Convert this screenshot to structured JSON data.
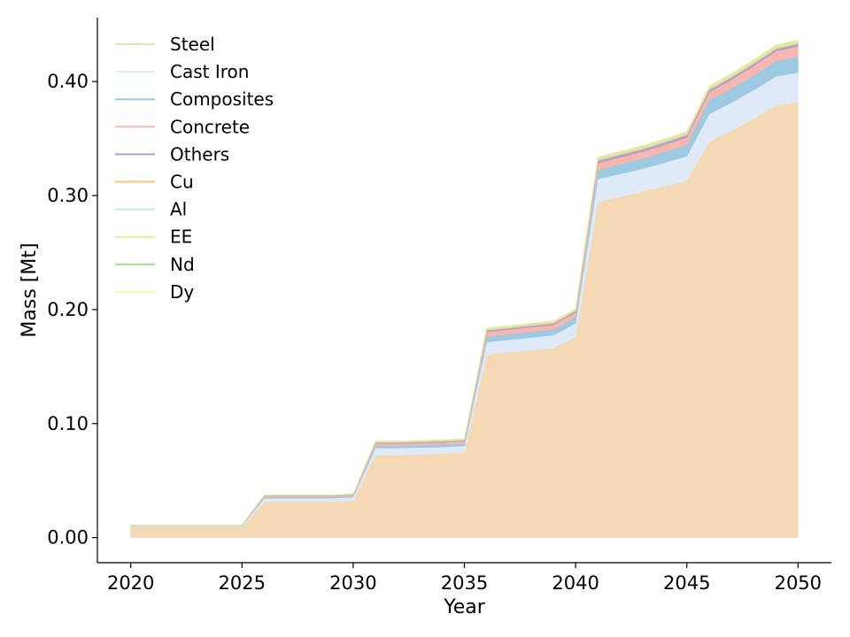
{
  "chart_data": {
    "type": "area",
    "stacked": true,
    "xlabel": "Year",
    "ylabel": "Mass [Mt]",
    "xlim": [
      2018.5,
      2051.5
    ],
    "ylim": [
      -0.022,
      0.456
    ],
    "x_ticks": [
      2020,
      2025,
      2030,
      2035,
      2040,
      2045,
      2050
    ],
    "y_ticks": [
      0.0,
      0.1,
      0.2,
      0.3,
      0.4
    ],
    "y_tick_labels": [
      "0.00",
      "0.10",
      "0.20",
      "0.30",
      "0.40"
    ],
    "grid": false,
    "legend_position": "upper-left",
    "x": [
      2020,
      2021,
      2022,
      2023,
      2024,
      2025,
      2026,
      2027,
      2028,
      2029,
      2030,
      2031,
      2032,
      2033,
      2034,
      2035,
      2036,
      2037,
      2038,
      2039,
      2040,
      2041,
      2042,
      2043,
      2044,
      2045,
      2046,
      2047,
      2048,
      2049,
      2050
    ],
    "series": [
      {
        "name": "Steel",
        "color": "#f5d8b4",
        "values": [
          0.0095,
          0.0095,
          0.0095,
          0.0095,
          0.0095,
          0.0095,
          0.0315,
          0.0315,
          0.0315,
          0.0315,
          0.0325,
          0.0725,
          0.0725,
          0.073,
          0.0735,
          0.0745,
          0.1605,
          0.1625,
          0.1645,
          0.1665,
          0.176,
          0.2945,
          0.299,
          0.3035,
          0.308,
          0.313,
          0.347,
          0.357,
          0.3675,
          0.379,
          0.382
        ]
      },
      {
        "name": "Cast Iron",
        "color": "#deeaf7",
        "values": [
          0.0008,
          0.0008,
          0.0008,
          0.0008,
          0.0008,
          0.0008,
          0.003,
          0.003,
          0.003,
          0.003,
          0.003,
          0.006,
          0.006,
          0.006,
          0.006,
          0.006,
          0.011,
          0.011,
          0.011,
          0.011,
          0.012,
          0.02,
          0.02,
          0.02,
          0.021,
          0.0215,
          0.0245,
          0.0245,
          0.025,
          0.0255,
          0.026
        ]
      },
      {
        "name": "Composites",
        "color": "#9ecae1",
        "values": [
          0.0002,
          0.0002,
          0.0002,
          0.0002,
          0.0002,
          0.0002,
          0.001,
          0.001,
          0.001,
          0.001,
          0.001,
          0.002,
          0.002,
          0.002,
          0.002,
          0.002,
          0.005,
          0.005,
          0.005,
          0.005,
          0.0055,
          0.008,
          0.0085,
          0.009,
          0.0095,
          0.01,
          0.012,
          0.0125,
          0.013,
          0.0135,
          0.014
        ]
      },
      {
        "name": "Concrete",
        "color": "#f7b6b0",
        "values": [
          0.0002,
          0.0002,
          0.0002,
          0.0002,
          0.0002,
          0.0002,
          0.0008,
          0.0008,
          0.0008,
          0.0008,
          0.0008,
          0.002,
          0.002,
          0.002,
          0.002,
          0.002,
          0.004,
          0.004,
          0.004,
          0.004,
          0.004,
          0.006,
          0.006,
          0.006,
          0.006,
          0.0065,
          0.007,
          0.0075,
          0.008,
          0.0085,
          0.009
        ]
      },
      {
        "name": "Others",
        "color": "#a9a3cf",
        "values": [
          0.0001,
          0.0001,
          0.0001,
          0.0001,
          0.0001,
          0.0001,
          0.0004,
          0.0004,
          0.0004,
          0.0004,
          0.0004,
          0.0008,
          0.0008,
          0.0008,
          0.0008,
          0.0008,
          0.0012,
          0.0012,
          0.0012,
          0.0012,
          0.0012,
          0.002,
          0.002,
          0.002,
          0.002,
          0.002,
          0.002,
          0.002,
          0.002,
          0.002,
          0.002
        ]
      },
      {
        "name": "Cu",
        "color": "#fdc67a",
        "values": [
          0.0001,
          0.0001,
          0.0001,
          0.0001,
          0.0001,
          0.0001,
          0.0003,
          0.0003,
          0.0003,
          0.0003,
          0.0003,
          0.0006,
          0.0006,
          0.0006,
          0.0006,
          0.0006,
          0.0008,
          0.0008,
          0.0008,
          0.0008,
          0.0008,
          0.001,
          0.001,
          0.001,
          0.001,
          0.001,
          0.001,
          0.001,
          0.001,
          0.001,
          0.001
        ]
      },
      {
        "name": "Al",
        "color": "#c7ebe0",
        "values": [
          0.0001,
          0.0001,
          0.0001,
          0.0001,
          0.0001,
          0.0001,
          0.0002,
          0.0002,
          0.0002,
          0.0002,
          0.0002,
          0.0004,
          0.0004,
          0.0004,
          0.0004,
          0.0004,
          0.0005,
          0.0005,
          0.0005,
          0.0005,
          0.0005,
          0.0008,
          0.0008,
          0.0008,
          0.0008,
          0.0008,
          0.0008,
          0.0008,
          0.0008,
          0.0008,
          0.0008
        ]
      },
      {
        "name": "EE",
        "color": "#e2ef98",
        "values": [
          0.0001,
          0.0001,
          0.0001,
          0.0001,
          0.0001,
          0.0001,
          0.0002,
          0.0002,
          0.0002,
          0.0002,
          0.0002,
          0.0004,
          0.0004,
          0.0004,
          0.0004,
          0.0004,
          0.0006,
          0.0006,
          0.0006,
          0.0006,
          0.0006,
          0.001,
          0.001,
          0.001,
          0.001,
          0.001,
          0.0012,
          0.0012,
          0.0012,
          0.0012,
          0.0012
        ]
      },
      {
        "name": "Nd",
        "color": "#a3d98f",
        "values": [
          0.0,
          0.0,
          0.0,
          0.0,
          0.0,
          0.0,
          0.0001,
          0.0001,
          0.0001,
          0.0001,
          0.0001,
          0.0001,
          0.0001,
          0.0001,
          0.0001,
          0.0001,
          0.0002,
          0.0002,
          0.0002,
          0.0002,
          0.0002,
          0.0003,
          0.0003,
          0.0003,
          0.0003,
          0.0003,
          0.0003,
          0.0003,
          0.0003,
          0.0003,
          0.0003
        ]
      },
      {
        "name": "Dy",
        "color": "#fbf4a6",
        "values": [
          0.0,
          0.0,
          0.0,
          0.0,
          0.0,
          0.0,
          0.0,
          0.0,
          0.0,
          0.0,
          0.0,
          0.0001,
          0.0001,
          0.0001,
          0.0001,
          0.0001,
          0.0001,
          0.0001,
          0.0001,
          0.0001,
          0.0001,
          0.0002,
          0.0002,
          0.0002,
          0.0002,
          0.0002,
          0.0002,
          0.0002,
          0.0002,
          0.0002,
          0.0002
        ]
      }
    ]
  }
}
